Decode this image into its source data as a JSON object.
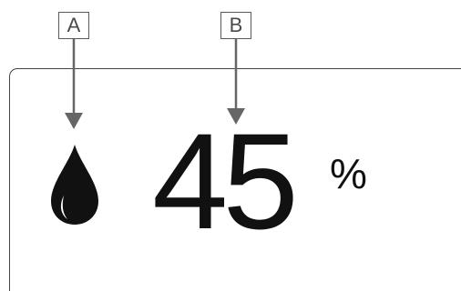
{
  "callouts": {
    "a_label": "A",
    "b_label": "B"
  },
  "display": {
    "icon": "water-drop-icon",
    "value": "45",
    "unit": "%"
  },
  "colors": {
    "callout_stroke": "#5a5a5a",
    "arrow": "#666666",
    "panel_border": "#444444",
    "text": "#111111"
  }
}
